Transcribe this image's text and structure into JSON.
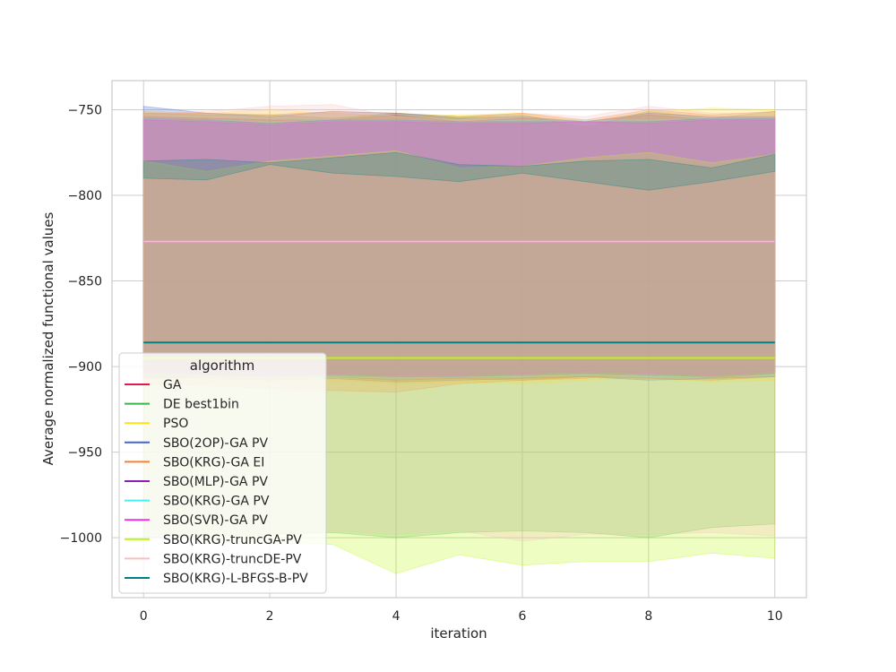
{
  "chart_data": {
    "type": "line",
    "xlabel": "iteration",
    "ylabel": "Average normalized functional values",
    "xlim": [
      -0.5,
      10.5
    ],
    "ylim": [
      -1035,
      -733
    ],
    "xticks": [
      0,
      2,
      4,
      6,
      8,
      10
    ],
    "yticks": [
      -750,
      -800,
      -850,
      -900,
      -950,
      -1000
    ],
    "grid": true,
    "legend": {
      "title": "algorithm",
      "placement": "lower-left"
    },
    "x": [
      0,
      1,
      2,
      3,
      4,
      5,
      6,
      7,
      8,
      9,
      10
    ],
    "series": [
      {
        "name": "GA",
        "color": "#e6194b",
        "values": [
          -827,
          -827,
          -827,
          -827,
          -827,
          -827,
          -827,
          -827,
          -827,
          -827,
          -827
        ],
        "upper": [
          -754,
          -755,
          -756,
          -756,
          -753,
          -757,
          -755,
          -757,
          -753,
          -756,
          -755
        ],
        "lower": [
          -907,
          -906,
          -905,
          -906,
          -908,
          -907,
          -908,
          -906,
          -907,
          -908,
          -906
        ]
      },
      {
        "name": "DE best1bin",
        "color": "#3cb44b",
        "values": [
          -827,
          -827,
          -827,
          -827,
          -827,
          -827,
          -827,
          -827,
          -827,
          -827,
          -827
        ],
        "upper": [
          -752,
          -753,
          -753,
          -755,
          -752,
          -754,
          -753,
          -760,
          -751,
          -755,
          -751
        ],
        "lower": [
          -1000,
          -999,
          -998,
          -997,
          -1000,
          -997,
          -996,
          -997,
          -1000,
          -994,
          -992
        ]
      },
      {
        "name": "PSO",
        "color": "#ffe119",
        "values": [
          -827,
          -827,
          -827,
          -827,
          -827,
          -827,
          -827,
          -827,
          -827,
          -827,
          -827
        ],
        "upper": [
          -751,
          -752,
          -750,
          -752,
          -754,
          -753,
          -752,
          -757,
          -751,
          -749,
          -750
        ],
        "lower": [
          -905,
          -906,
          -907,
          -908,
          -910,
          -909,
          -910,
          -908,
          -907,
          -909,
          -908
        ]
      },
      {
        "name": "SBO(2OP)-GA PV",
        "color": "#4363d8",
        "values": [
          -827,
          -827,
          -827,
          -827,
          -827,
          -827,
          -827,
          -827,
          -827,
          -827,
          -827
        ],
        "upper": [
          -748,
          -752,
          -754,
          -751,
          -752,
          -755,
          -754,
          -757,
          -752,
          -754,
          -754
        ],
        "lower": [
          -906,
          -907,
          -908,
          -907,
          -909,
          -908,
          -907,
          -906,
          -908,
          -907,
          -906
        ]
      },
      {
        "name": "SBO(KRG)-GA EI",
        "color": "#f58231",
        "values": [
          -827,
          -827,
          -827,
          -827,
          -827,
          -827,
          -827,
          -827,
          -827,
          -827,
          -827
        ],
        "upper": [
          -752,
          -752,
          -753,
          -751,
          -752,
          -754,
          -752,
          -756,
          -750,
          -753,
          -751
        ],
        "lower": [
          -910,
          -911,
          -913,
          -914,
          -915,
          -910,
          -908,
          -907,
          -903,
          -907,
          -904
        ]
      },
      {
        "name": "SBO(MLP)-GA PV",
        "color": "#911eb4",
        "values": [
          -827,
          -827,
          -827,
          -827,
          -827,
          -827,
          -827,
          -827,
          -827,
          -827,
          -827
        ],
        "upper": [
          -755,
          -756,
          -758,
          -756,
          -756,
          -757,
          -757,
          -757,
          -757,
          -755,
          -755
        ],
        "lower": [
          -904,
          -905,
          -906,
          -905,
          -906,
          -906,
          -905,
          -904,
          -905,
          -906,
          -904
        ]
      },
      {
        "name": "SBO(KRG)-GA PV",
        "color": "#46f0f0",
        "values": [
          -827,
          -827,
          -827,
          -827,
          -827,
          -827,
          -827,
          -827,
          -827,
          -827,
          -827
        ],
        "upper": [
          -755,
          -756,
          -757,
          -756,
          -756,
          -757,
          -756,
          -756,
          -756,
          -755,
          -755
        ],
        "lower": [
          -905,
          -906,
          -906,
          -906,
          -907,
          -906,
          -906,
          -905,
          -906,
          -906,
          -905
        ]
      },
      {
        "name": "SBO(SVR)-GA PV",
        "color": "#f032e6",
        "values": [
          -827,
          -827,
          -827,
          -827,
          -827,
          -827,
          -827,
          -827,
          -827,
          -827,
          -827
        ],
        "upper": [
          -756,
          -757,
          -759,
          -757,
          -757,
          -758,
          -758,
          -757,
          -758,
          -756,
          -756
        ],
        "lower": [
          -903,
          -904,
          -905,
          -904,
          -905,
          -905,
          -904,
          -903,
          -904,
          -905,
          -903
        ]
      },
      {
        "name": "SBO(KRG)-truncGA-PV",
        "color": "#bcf60c",
        "values": [
          -895,
          -895,
          -895,
          -895,
          -895,
          -895,
          -895,
          -895,
          -895,
          -895,
          -895
        ],
        "upper": [
          -780,
          -786,
          -780,
          -777,
          -774,
          -784,
          -783,
          -778,
          -775,
          -781,
          -776
        ],
        "lower": [
          -995,
          -1003,
          -1002,
          -1004,
          -1021,
          -1010,
          -1016,
          -1014,
          -1014,
          -1009,
          -1012
        ]
      },
      {
        "name": "SBO(KRG)-truncDE-PV",
        "color": "#fabebe",
        "values": [
          -827,
          -827,
          -827,
          -827,
          -827,
          -827,
          -827,
          -827,
          -827,
          -827,
          -827
        ],
        "upper": [
          -752,
          -751,
          -748,
          -747,
          -754,
          -756,
          -752,
          -754,
          -748,
          -752,
          -752
        ],
        "lower": [
          -1000,
          -1000,
          -998,
          -996,
          -998,
          -996,
          -1002,
          -998,
          -998,
          -997,
          -999
        ]
      },
      {
        "name": "SBO(KRG)-L-BFGS-B-PV",
        "color": "#008080",
        "values": [
          -886,
          -886,
          -886,
          -886,
          -886,
          -886,
          -886,
          -886,
          -886,
          -886,
          -886
        ],
        "upper": [
          -780,
          -779,
          -781,
          -778,
          -775,
          -782,
          -783,
          -780,
          -779,
          -784,
          -776
        ],
        "lower": [
          -790,
          -791,
          -782,
          -787,
          -789,
          -792,
          -787,
          -792,
          -797,
          -792,
          -786
        ]
      }
    ]
  }
}
